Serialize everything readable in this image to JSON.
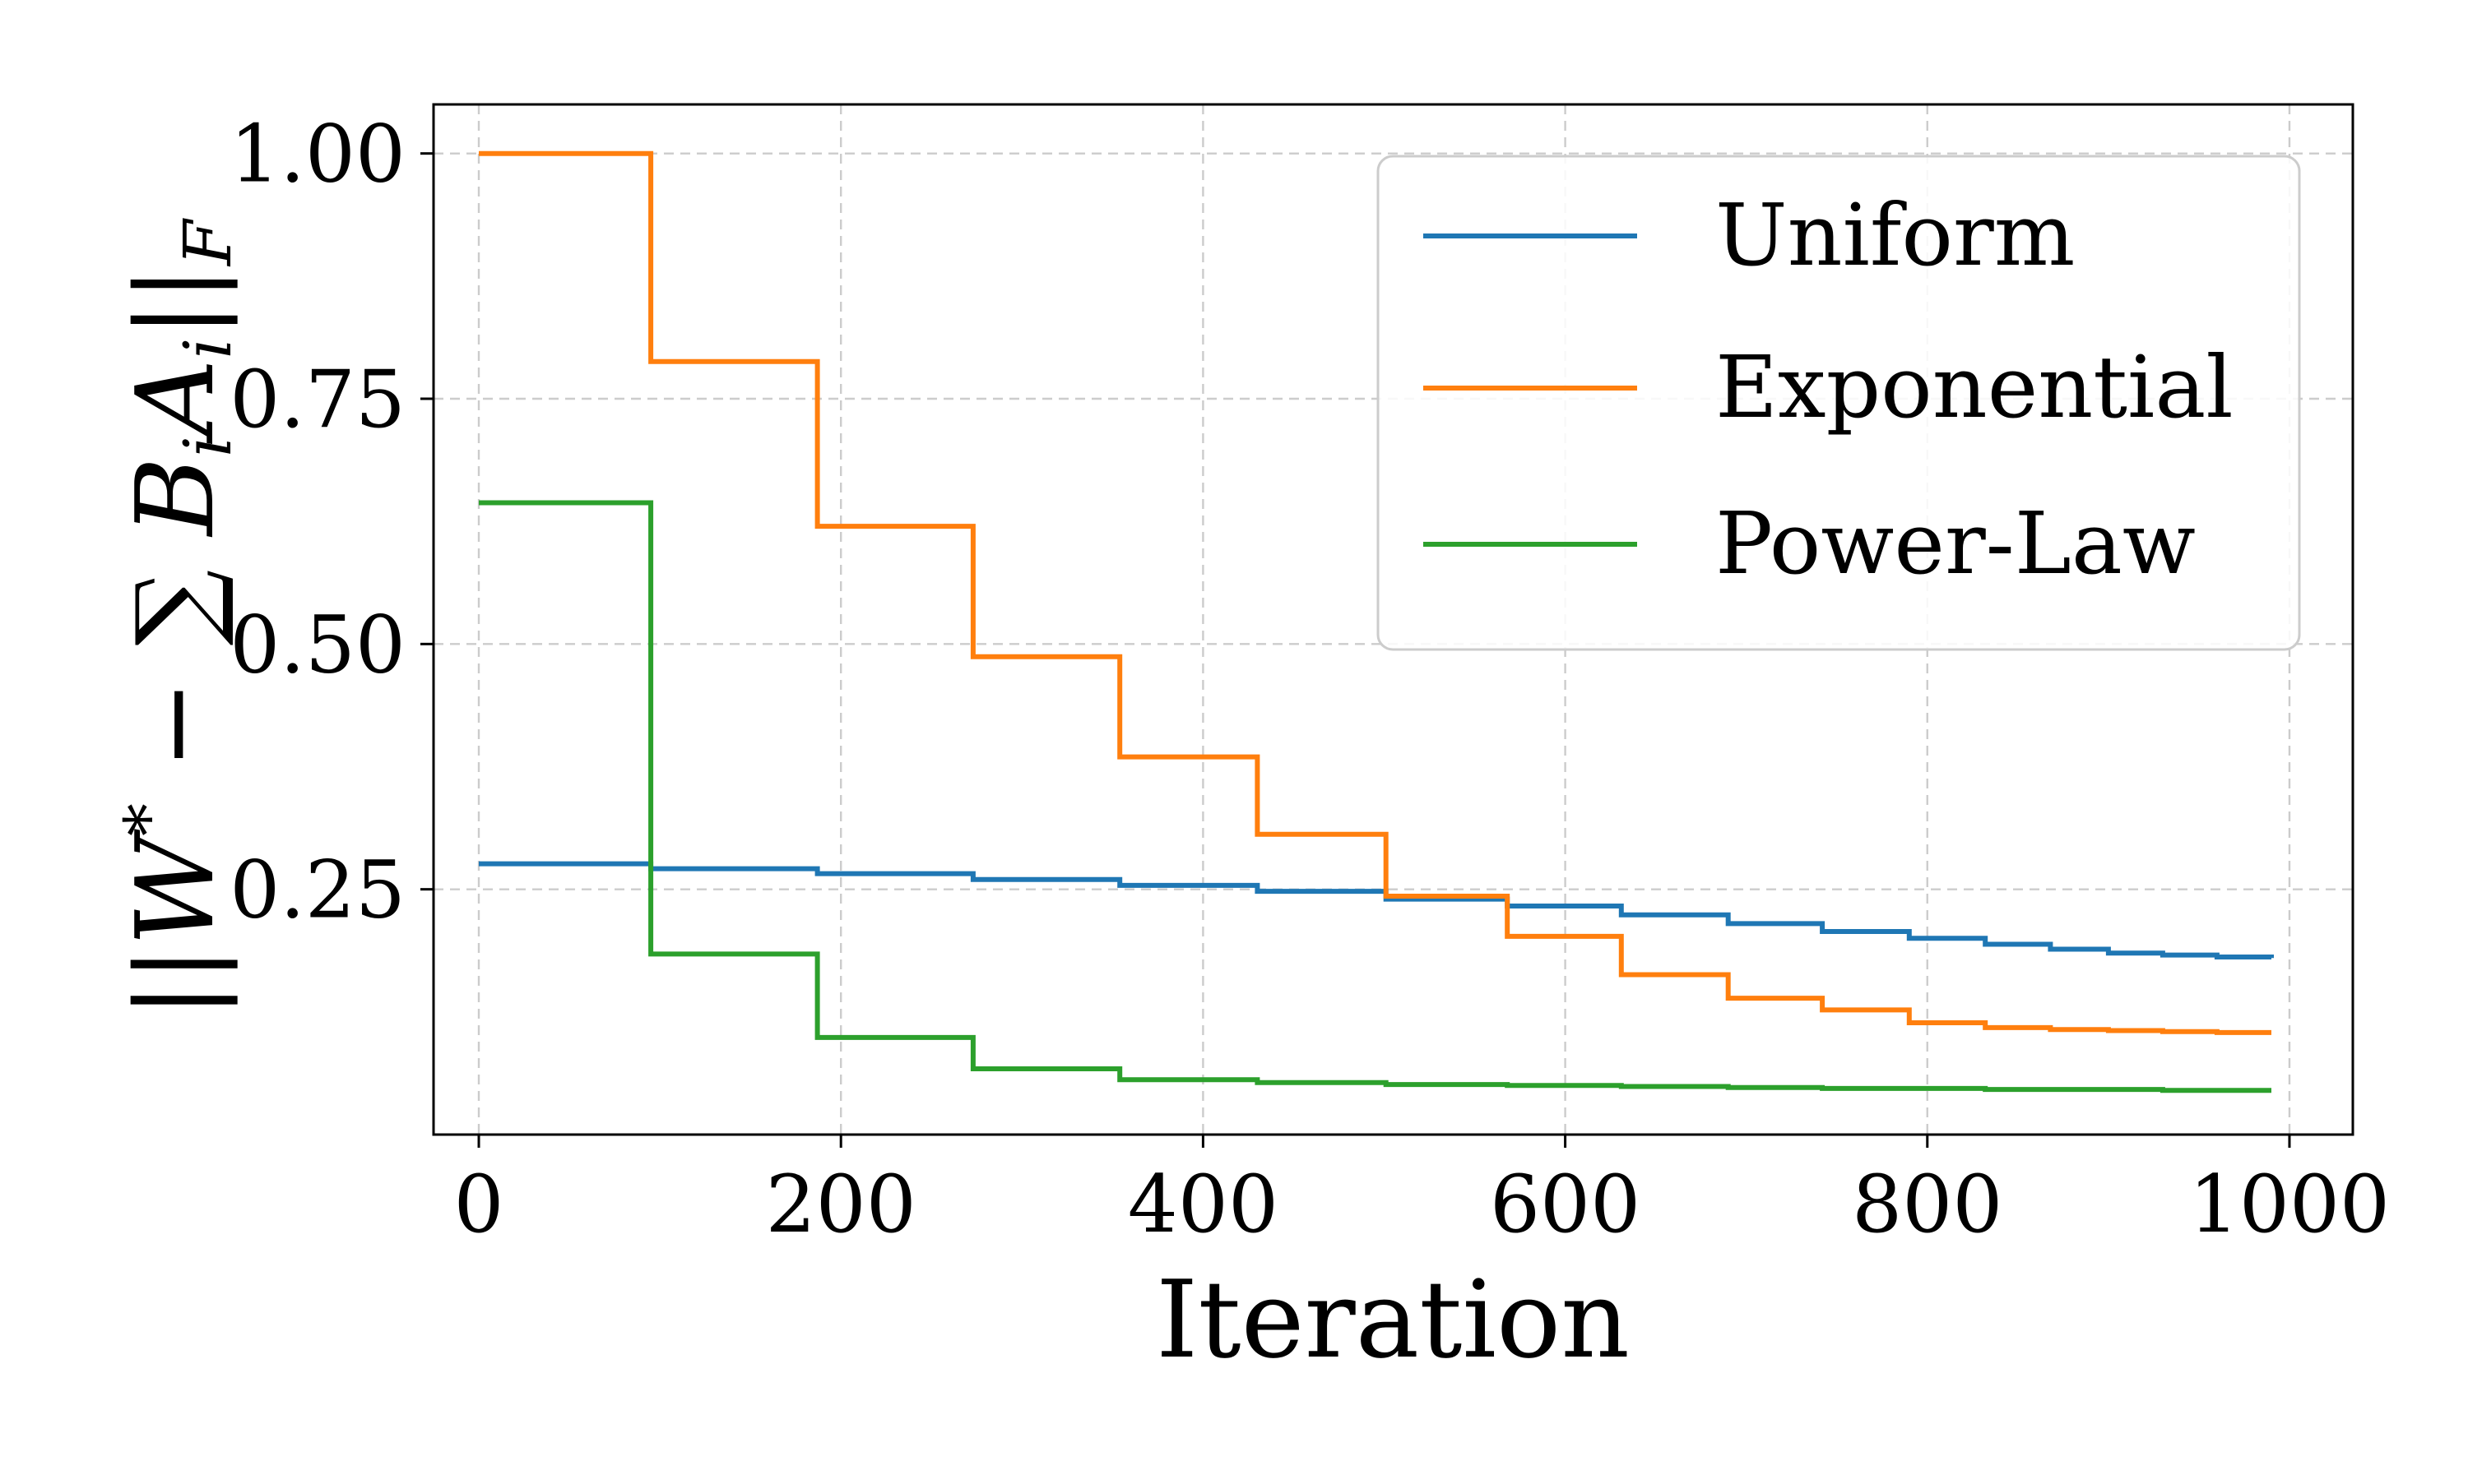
{
  "chart_data": {
    "type": "line",
    "title": "",
    "xlabel": "Iteration",
    "ylabel": "||W* − ∑ B_i A_i||_F",
    "ylabel_parts": [
      "||",
      "W",
      "*",
      " − ∑ ",
      "B",
      "i",
      "A",
      "i",
      "||",
      "F"
    ],
    "xlim": [
      -25,
      1035
    ],
    "ylim": [
      0.0,
      1.05
    ],
    "xticks": [
      0,
      200,
      400,
      600,
      800,
      1000
    ],
    "xtick_labels": [
      "0",
      "200",
      "400",
      "600",
      "800",
      "1000"
    ],
    "yticks": [
      0.25,
      0.5,
      0.75,
      1.0
    ],
    "ytick_labels": [
      "0.25",
      "0.50",
      "0.75",
      "1.00"
    ],
    "grid": true,
    "legend_position": "top-right",
    "step": "post",
    "series": [
      {
        "name": "Uniform",
        "color": "#1f77b4",
        "x": [
          0,
          95,
          187,
          273,
          354,
          430,
          501,
          568,
          631,
          690,
          742,
          790,
          832,
          868,
          900,
          930,
          960,
          990
        ],
        "y": [
          0.276,
          0.271,
          0.266,
          0.26,
          0.254,
          0.248,
          0.24,
          0.233,
          0.224,
          0.215,
          0.207,
          0.2,
          0.194,
          0.189,
          0.185,
          0.183,
          0.181,
          0.18
        ]
      },
      {
        "name": "Exponential",
        "color": "#ff7f0e",
        "x": [
          0,
          95,
          187,
          273,
          354,
          430,
          501,
          568,
          631,
          690,
          742,
          790,
          832,
          868,
          900,
          930,
          960,
          990
        ],
        "y": [
          1.0,
          0.788,
          0.62,
          0.487,
          0.385,
          0.306,
          0.243,
          0.202,
          0.163,
          0.139,
          0.127,
          0.114,
          0.109,
          0.107,
          0.106,
          0.105,
          0.104,
          0.104
        ]
      },
      {
        "name": "Power-Law",
        "color": "#2ca02c",
        "x": [
          0,
          95,
          187,
          273,
          354,
          430,
          501,
          568,
          631,
          690,
          742,
          790,
          832,
          868,
          900,
          930,
          960,
          990
        ],
        "y": [
          0.644,
          0.184,
          0.099,
          0.067,
          0.056,
          0.053,
          0.051,
          0.05,
          0.049,
          0.048,
          0.047,
          0.047,
          0.046,
          0.046,
          0.046,
          0.045,
          0.045,
          0.045
        ]
      }
    ]
  }
}
